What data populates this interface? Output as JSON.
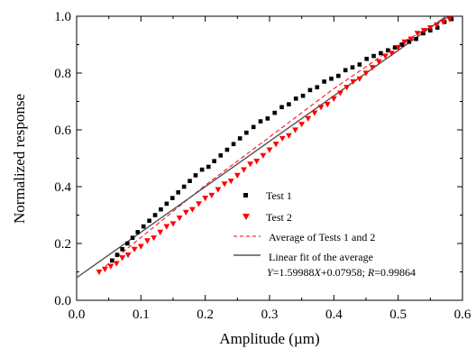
{
  "chart_data": {
    "type": "scatter",
    "xlabel": "Amplitude (µm)",
    "ylabel": "Normalized response",
    "xlim": [
      0.0,
      0.6
    ],
    "ylim": [
      0.0,
      1.0
    ],
    "xticks": [
      "0.0",
      "0.1",
      "0.2",
      "0.3",
      "0.4",
      "0.5",
      "0.6"
    ],
    "yticks": [
      "0.0",
      "0.2",
      "0.4",
      "0.6",
      "0.8",
      "1.0"
    ],
    "grid": false,
    "legend_position": "bottom-right",
    "series": [
      {
        "name": "Test 1",
        "kind": "marker",
        "marker": "square",
        "color": "#000000",
        "points": [
          [
            0.055,
            0.14
          ],
          [
            0.063,
            0.16
          ],
          [
            0.071,
            0.18
          ],
          [
            0.079,
            0.2
          ],
          [
            0.087,
            0.22
          ],
          [
            0.095,
            0.24
          ],
          [
            0.104,
            0.26
          ],
          [
            0.113,
            0.28
          ],
          [
            0.122,
            0.3
          ],
          [
            0.131,
            0.32
          ],
          [
            0.14,
            0.34
          ],
          [
            0.149,
            0.36
          ],
          [
            0.158,
            0.38
          ],
          [
            0.167,
            0.4
          ],
          [
            0.176,
            0.42
          ],
          [
            0.185,
            0.44
          ],
          [
            0.195,
            0.46
          ],
          [
            0.205,
            0.47
          ],
          [
            0.214,
            0.49
          ],
          [
            0.224,
            0.51
          ],
          [
            0.234,
            0.53
          ],
          [
            0.244,
            0.55
          ],
          [
            0.254,
            0.57
          ],
          [
            0.264,
            0.59
          ],
          [
            0.275,
            0.61
          ],
          [
            0.286,
            0.63
          ],
          [
            0.297,
            0.64
          ],
          [
            0.308,
            0.66
          ],
          [
            0.319,
            0.68
          ],
          [
            0.33,
            0.69
          ],
          [
            0.341,
            0.71
          ],
          [
            0.352,
            0.72
          ],
          [
            0.363,
            0.74
          ],
          [
            0.374,
            0.75
          ],
          [
            0.385,
            0.77
          ],
          [
            0.396,
            0.78
          ],
          [
            0.407,
            0.79
          ],
          [
            0.418,
            0.81
          ],
          [
            0.429,
            0.82
          ],
          [
            0.44,
            0.83
          ],
          [
            0.451,
            0.85
          ],
          [
            0.462,
            0.86
          ],
          [
            0.473,
            0.87
          ],
          [
            0.484,
            0.88
          ],
          [
            0.495,
            0.89
          ],
          [
            0.506,
            0.9
          ],
          [
            0.517,
            0.91
          ],
          [
            0.528,
            0.92
          ],
          [
            0.539,
            0.94
          ],
          [
            0.55,
            0.95
          ],
          [
            0.561,
            0.96
          ],
          [
            0.572,
            0.98
          ],
          [
            0.583,
            0.99
          ]
        ]
      },
      {
        "name": "Test 2",
        "kind": "marker",
        "marker": "triangle-down",
        "color": "#ff0000",
        "points": [
          [
            0.035,
            0.1
          ],
          [
            0.044,
            0.11
          ],
          [
            0.053,
            0.12
          ],
          [
            0.062,
            0.13
          ],
          [
            0.071,
            0.15
          ],
          [
            0.08,
            0.16
          ],
          [
            0.09,
            0.18
          ],
          [
            0.1,
            0.19
          ],
          [
            0.11,
            0.21
          ],
          [
            0.12,
            0.22
          ],
          [
            0.13,
            0.24
          ],
          [
            0.14,
            0.26
          ],
          [
            0.15,
            0.27
          ],
          [
            0.16,
            0.29
          ],
          [
            0.17,
            0.31
          ],
          [
            0.18,
            0.32
          ],
          [
            0.19,
            0.34
          ],
          [
            0.2,
            0.36
          ],
          [
            0.21,
            0.37
          ],
          [
            0.22,
            0.39
          ],
          [
            0.23,
            0.41
          ],
          [
            0.24,
            0.42
          ],
          [
            0.25,
            0.44
          ],
          [
            0.26,
            0.46
          ],
          [
            0.27,
            0.48
          ],
          [
            0.28,
            0.49
          ],
          [
            0.29,
            0.51
          ],
          [
            0.3,
            0.53
          ],
          [
            0.31,
            0.55
          ],
          [
            0.32,
            0.57
          ],
          [
            0.33,
            0.58
          ],
          [
            0.34,
            0.6
          ],
          [
            0.35,
            0.62
          ],
          [
            0.36,
            0.64
          ],
          [
            0.37,
            0.66
          ],
          [
            0.38,
            0.68
          ],
          [
            0.39,
            0.69
          ],
          [
            0.4,
            0.71
          ],
          [
            0.41,
            0.73
          ],
          [
            0.42,
            0.75
          ],
          [
            0.43,
            0.77
          ],
          [
            0.44,
            0.78
          ],
          [
            0.45,
            0.8
          ],
          [
            0.46,
            0.82
          ],
          [
            0.47,
            0.84
          ],
          [
            0.48,
            0.86
          ],
          [
            0.49,
            0.87
          ],
          [
            0.5,
            0.89
          ],
          [
            0.51,
            0.91
          ],
          [
            0.52,
            0.92
          ],
          [
            0.53,
            0.94
          ],
          [
            0.54,
            0.95
          ],
          [
            0.55,
            0.96
          ],
          [
            0.56,
            0.97
          ],
          [
            0.57,
            0.98
          ],
          [
            0.58,
            0.99
          ]
        ]
      },
      {
        "name": "Average of Tests 1 and 2",
        "kind": "line",
        "style": "dashed",
        "color": "#ff0000",
        "points": [
          [
            0.045,
            0.12
          ],
          [
            0.2,
            0.405
          ],
          [
            0.3,
            0.575
          ],
          [
            0.4,
            0.745
          ],
          [
            0.5,
            0.9
          ],
          [
            0.58,
            1.0
          ]
        ]
      },
      {
        "name": "Linear fit of the average",
        "kind": "line",
        "style": "solid",
        "color": "#555555",
        "points": [
          [
            0.0,
            0.07958
          ],
          [
            0.575,
            1.0
          ]
        ]
      }
    ],
    "annotation": {
      "Y": "Y",
      "eq_mid": "=1.59988",
      "X": "X",
      "eq_tail": "+0.07958; ",
      "R": "R",
      "r_val": "=0.99864"
    }
  }
}
